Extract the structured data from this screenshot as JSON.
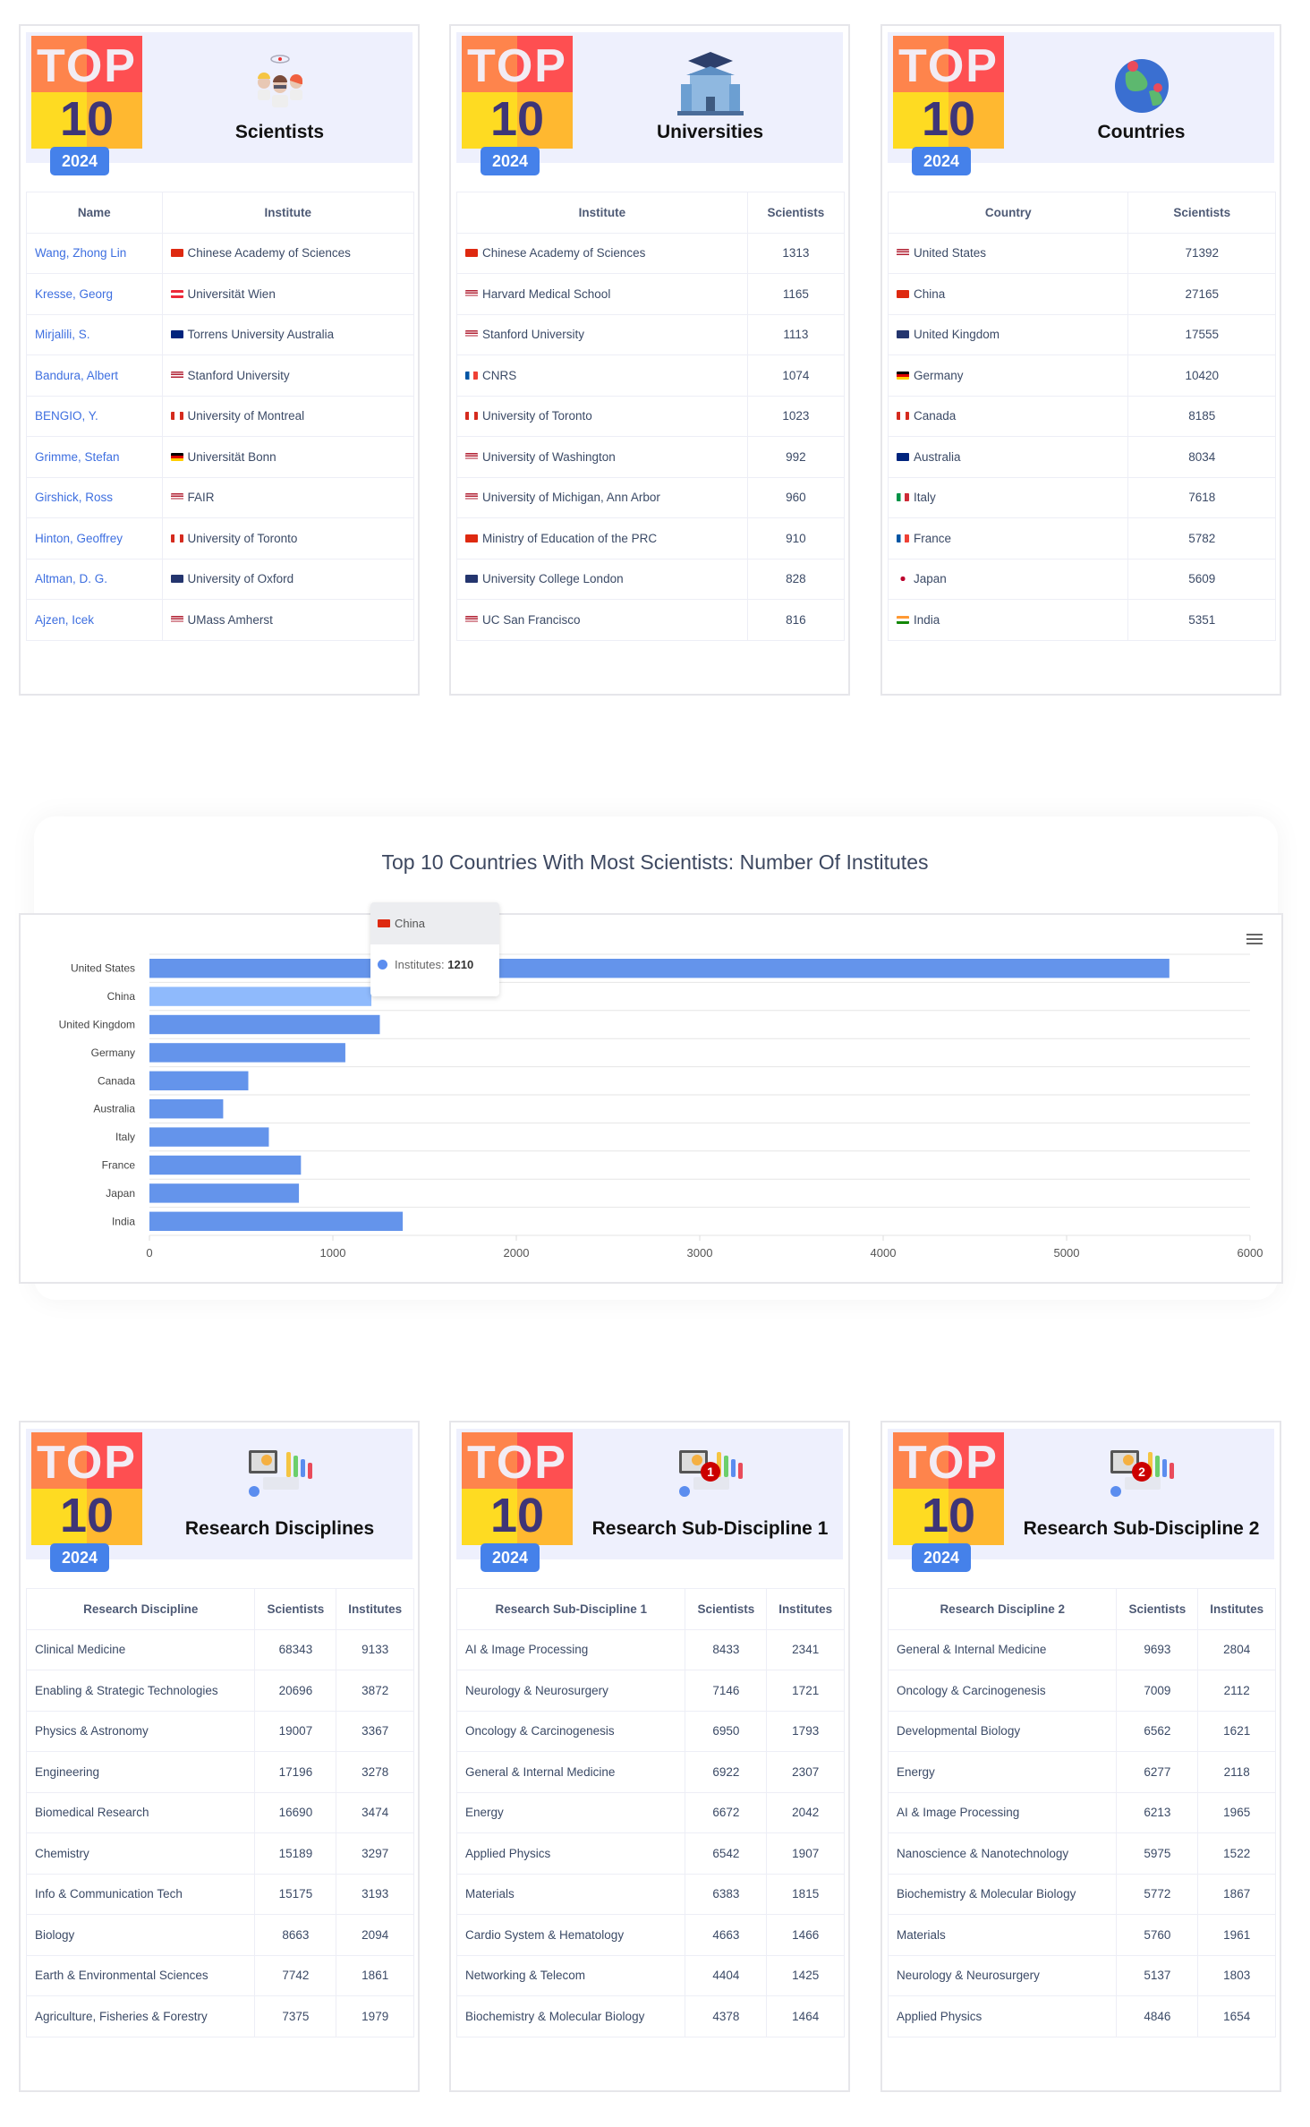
{
  "badge": {
    "top": "TOP",
    "ten": "10",
    "year": "2024"
  },
  "cards": [
    {
      "id": "scientists",
      "title": "Scientists",
      "icon": "scientists-icon",
      "columns": [
        "Name",
        "Institute"
      ],
      "widths": [
        "35%",
        "65%"
      ],
      "types": [
        "link",
        "flagtext"
      ],
      "rows": [
        [
          "Wang, Zhong Lin",
          [
            "cn",
            "Chinese Academy of Sciences"
          ]
        ],
        [
          "Kresse, Georg",
          [
            "at",
            "Universität Wien"
          ]
        ],
        [
          "Mirjalili, S.",
          [
            "au",
            "Torrens University Australia"
          ]
        ],
        [
          "Bandura, Albert",
          [
            "us",
            "Stanford University"
          ]
        ],
        [
          "BENGIO, Y.",
          [
            "ca",
            "University of Montreal"
          ]
        ],
        [
          "Grimme, Stefan",
          [
            "de",
            "Universität Bonn"
          ]
        ],
        [
          "Girshick, Ross",
          [
            "us",
            "FAIR"
          ]
        ],
        [
          "Hinton, Geoffrey",
          [
            "ca",
            "University of Toronto"
          ]
        ],
        [
          "Altman, D. G.",
          [
            "gb",
            "University of Oxford"
          ]
        ],
        [
          "Ajzen, Icek",
          [
            "us",
            "UMass Amherst"
          ]
        ]
      ]
    },
    {
      "id": "universities",
      "title": "Universities",
      "icon": "university-icon",
      "columns": [
        "Institute",
        "Scientists"
      ],
      "widths": [
        "75%",
        "25%"
      ],
      "types": [
        "flagtext",
        "num"
      ],
      "rows": [
        [
          [
            "cn",
            "Chinese Academy of Sciences"
          ],
          "1313"
        ],
        [
          [
            "us",
            "Harvard Medical School"
          ],
          "1165"
        ],
        [
          [
            "us",
            "Stanford University"
          ],
          "1113"
        ],
        [
          [
            "fr",
            "CNRS"
          ],
          "1074"
        ],
        [
          [
            "ca",
            "University of Toronto"
          ],
          "1023"
        ],
        [
          [
            "us",
            "University of Washington"
          ],
          "992"
        ],
        [
          [
            "us",
            "University of Michigan, Ann Arbor"
          ],
          "960"
        ],
        [
          [
            "cn",
            "Ministry of Education of the PRC"
          ],
          "910"
        ],
        [
          [
            "gb",
            "University College London"
          ],
          "828"
        ],
        [
          [
            "us",
            "UC San Francisco"
          ],
          "816"
        ]
      ]
    },
    {
      "id": "countries",
      "title": "Countries",
      "icon": "globe-icon",
      "columns": [
        "Country",
        "Scientists"
      ],
      "widths": [
        "62%",
        "38%"
      ],
      "types": [
        "flagtext",
        "num"
      ],
      "rows": [
        [
          [
            "us",
            "United States"
          ],
          "71392"
        ],
        [
          [
            "cn",
            "China"
          ],
          "27165"
        ],
        [
          [
            "gb",
            "United Kingdom"
          ],
          "17555"
        ],
        [
          [
            "de",
            "Germany"
          ],
          "10420"
        ],
        [
          [
            "ca",
            "Canada"
          ],
          "8185"
        ],
        [
          [
            "au",
            "Australia"
          ],
          "8034"
        ],
        [
          [
            "it",
            "Italy"
          ],
          "7618"
        ],
        [
          [
            "fr",
            "France"
          ],
          "5782"
        ],
        [
          [
            "jp",
            "Japan"
          ],
          "5609"
        ],
        [
          [
            "in",
            "India"
          ],
          "5351"
        ]
      ]
    },
    {
      "id": "disciplines",
      "title": "Research Disciplines",
      "icon": "analytics-icon",
      "columns": [
        "Research Discipline",
        "Scientists",
        "Institutes"
      ],
      "widths": [
        "59%",
        "21%",
        "20%"
      ],
      "types": [
        "text",
        "num",
        "num"
      ],
      "rows": [
        [
          "Clinical Medicine",
          "68343",
          "9133"
        ],
        [
          "Enabling & Strategic Technologies",
          "20696",
          "3872"
        ],
        [
          "Physics & Astronomy",
          "19007",
          "3367"
        ],
        [
          "Engineering",
          "17196",
          "3278"
        ],
        [
          "Biomedical Research",
          "16690",
          "3474"
        ],
        [
          "Chemistry",
          "15189",
          "3297"
        ],
        [
          "Info & Communication Tech",
          "15175",
          "3193"
        ],
        [
          "Biology",
          "8663",
          "2094"
        ],
        [
          "Earth & Environmental Sciences",
          "7742",
          "1861"
        ],
        [
          "Agriculture, Fisheries & Forestry",
          "7375",
          "1979"
        ]
      ]
    },
    {
      "id": "subdiscipline1",
      "title": "Research Sub-Discipline 1",
      "icon": "analytics-1-icon",
      "badge_num": "1",
      "columns": [
        "Research Sub-Discipline 1",
        "Scientists",
        "Institutes"
      ],
      "widths": [
        "59%",
        "21%",
        "20%"
      ],
      "types": [
        "text",
        "num",
        "num"
      ],
      "rows": [
        [
          "AI & Image Processing",
          "8433",
          "2341"
        ],
        [
          "Neurology & Neurosurgery",
          "7146",
          "1721"
        ],
        [
          "Oncology & Carcinogenesis",
          "6950",
          "1793"
        ],
        [
          "General & Internal Medicine",
          "6922",
          "2307"
        ],
        [
          "Energy",
          "6672",
          "2042"
        ],
        [
          "Applied Physics",
          "6542",
          "1907"
        ],
        [
          "Materials",
          "6383",
          "1815"
        ],
        [
          "Cardio System & Hematology",
          "4663",
          "1466"
        ],
        [
          "Networking & Telecom",
          "4404",
          "1425"
        ],
        [
          "Biochemistry & Molecular Biology",
          "4378",
          "1464"
        ]
      ]
    },
    {
      "id": "subdiscipline2",
      "title": "Research Sub-Discipline 2",
      "icon": "analytics-2-icon",
      "badge_num": "2",
      "columns": [
        "Research Discipline 2",
        "Scientists",
        "Institutes"
      ],
      "widths": [
        "59%",
        "21%",
        "20%"
      ],
      "types": [
        "text",
        "num",
        "num"
      ],
      "rows": [
        [
          "General & Internal Medicine",
          "9693",
          "2804"
        ],
        [
          "Oncology & Carcinogenesis",
          "7009",
          "2112"
        ],
        [
          "Developmental Biology",
          "6562",
          "1621"
        ],
        [
          "Energy",
          "6277",
          "2118"
        ],
        [
          "AI & Image Processing",
          "6213",
          "1965"
        ],
        [
          "Nanoscience & Nanotechnology",
          "5975",
          "1522"
        ],
        [
          "Biochemistry & Molecular Biology",
          "5772",
          "1867"
        ],
        [
          "Materials",
          "5760",
          "1961"
        ],
        [
          "Neurology & Neurosurgery",
          "5137",
          "1803"
        ],
        [
          "Applied Physics",
          "4846",
          "1654"
        ]
      ]
    }
  ],
  "chart_data": {
    "type": "bar",
    "orientation": "horizontal",
    "title": "Top 10 Countries With Most Scientists: Number Of Institutes",
    "categories": [
      "United States",
      "China",
      "United Kingdom",
      "Germany",
      "Canada",
      "Australia",
      "Italy",
      "France",
      "Japan",
      "India"
    ],
    "series": [
      {
        "name": "Institutes",
        "values": [
          5560,
          1210,
          1256,
          1068,
          539,
          402,
          651,
          826,
          815,
          1381
        ]
      }
    ],
    "xlim": [
      0,
      6000
    ],
    "xticks": [
      "0",
      "1000",
      "2000",
      "3000",
      "4000",
      "5000",
      "6000"
    ],
    "bar_color": "#6494eb",
    "highlight_color": "#8fbafc",
    "highlight_index": 1,
    "tooltip": {
      "category": "China",
      "label": "Institutes:",
      "value": "1210"
    }
  }
}
